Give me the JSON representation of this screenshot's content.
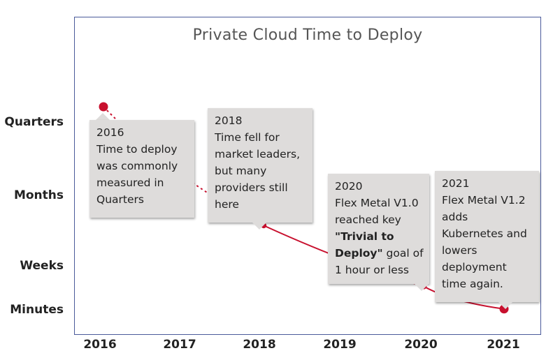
{
  "chart_data": {
    "type": "line",
    "title": "Private Cloud Time to Deploy",
    "x": [
      2016,
      2018,
      2020,
      2021
    ],
    "x_ticks": [
      "2016",
      "2017",
      "2018",
      "2019",
      "2020",
      "2021"
    ],
    "y_ticks": [
      "Quarters",
      "Months",
      "Weeks",
      "Minutes"
    ],
    "series": [
      {
        "name": "Time to deploy",
        "values": [
          "Quarters",
          "between Months and Weeks",
          "between Weeks and Minutes",
          "Minutes"
        ],
        "y_level": [
          3.25,
          1.4,
          0.45,
          0.1
        ],
        "color": "#c8102e",
        "dashed_until_x": 2018
      }
    ],
    "annotations": [
      {
        "year": "2016",
        "lines": [
          "Time to deploy",
          "was commonly",
          "measured in",
          "Quarters"
        ]
      },
      {
        "year": "2018",
        "lines": [
          "Time fell for",
          "market leaders,",
          "but many",
          "providers still",
          "here"
        ]
      },
      {
        "year": "2020",
        "lines": [
          "Flex Metal V1.0",
          "reached key"
        ],
        "bold": "\"Trivial to",
        "bold2": "Deploy\"",
        "after_bold": " goal of",
        "tail": "1 hour or less"
      },
      {
        "year": "2021",
        "lines": [
          "Flex Metal V1.2",
          "adds",
          "Kubernetes and",
          "lowers",
          "deployment",
          "time again."
        ]
      }
    ]
  },
  "colors": {
    "line": "#c8102e",
    "frame": "#4a5a9a",
    "box": "#dedcdb"
  }
}
